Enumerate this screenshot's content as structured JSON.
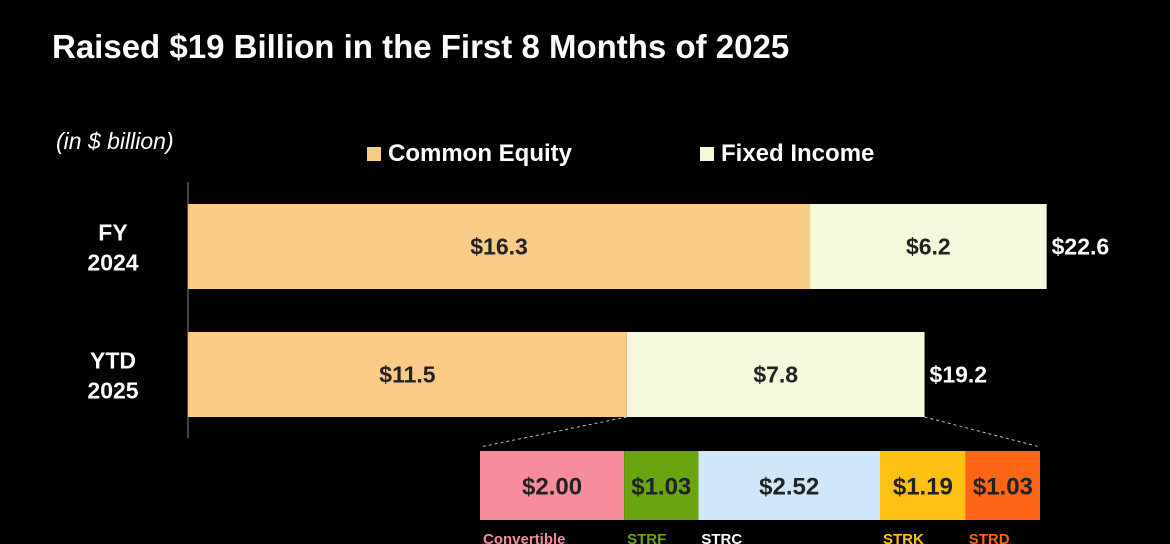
{
  "title": "Raised $19 Billion in the First 8 Months of 2025",
  "unit_note": "(in $ billion)",
  "legend": [
    {
      "label": "Common Equity",
      "color": "#F8CB86"
    },
    {
      "label": "Fixed Income",
      "color": "#F5F8DA"
    }
  ],
  "chart_data": [
    {
      "type": "bar",
      "orientation": "horizontal",
      "stacked": true,
      "categories": [
        [
          "FY",
          "2024"
        ],
        [
          "YTD",
          "2025"
        ]
      ],
      "series": [
        {
          "name": "Common Equity",
          "color": "#F8CB86",
          "values": [
            16.3,
            11.5
          ],
          "labels": [
            "$16.3",
            "$11.5"
          ]
        },
        {
          "name": "Fixed Income",
          "color": "#F5F8DA",
          "values": [
            6.2,
            7.8
          ],
          "labels": [
            "$6.2",
            "$7.8"
          ]
        }
      ],
      "totals": [
        22.6,
        19.2
      ],
      "total_labels": [
        "$22.6",
        "$19.2"
      ],
      "xlim": [
        0,
        23.4
      ],
      "grid": false
    },
    {
      "type": "bar",
      "orientation": "horizontal",
      "stacked": true,
      "description_source": "YTD 2025 Fixed Income",
      "segments": [
        {
          "name": "Convertible",
          "value": 2.0,
          "label": "$2.00",
          "color": "#F78D9C",
          "name_color": "#F78D9C"
        },
        {
          "name": "STRF",
          "value": 1.03,
          "label": "$1.03",
          "color": "#6AA40F",
          "name_color": "#6AA40F"
        },
        {
          "name": "STRC",
          "value": 2.52,
          "label": "$2.52",
          "color": "#CFE6FB",
          "name_color": "#FFFFFF"
        },
        {
          "name": "STRK",
          "value": 1.19,
          "label": "$1.19",
          "color": "#FDC113",
          "name_color": "#FDC113"
        },
        {
          "name": "STRD",
          "value": 1.03,
          "label": "$1.03",
          "color": "#FF6516",
          "name_color": "#FF6516"
        }
      ]
    }
  ]
}
